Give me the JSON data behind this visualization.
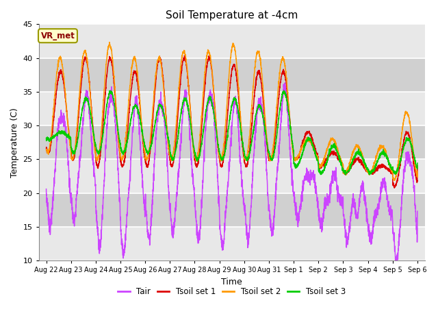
{
  "title": "Soil Temperature at -4cm",
  "xlabel": "Time",
  "ylabel": "Temperature (C)",
  "ylim": [
    10,
    45
  ],
  "background_color": "#ffffff",
  "plot_bg_color": "#d8d8d8",
  "grid_color": "#f0f0f0",
  "legend_label": "VR_met",
  "series_labels": [
    "Tair",
    "Tsoil set 1",
    "Tsoil set 2",
    "Tsoil set 3"
  ],
  "series_colors": [
    "#cc44ff",
    "#dd0000",
    "#ff9900",
    "#00cc00"
  ],
  "tick_labels": [
    "Aug 22",
    "Aug 23",
    "Aug 24",
    "Aug 25",
    "Aug 26",
    "Aug 27",
    "Aug 28",
    "Aug 29",
    "Aug 30",
    "Aug 31",
    "Sep 1",
    "Sep 2",
    "Sep 3",
    "Sep 4",
    "Sep 5",
    "Sep 6"
  ],
  "yticks": [
    10,
    15,
    20,
    25,
    30,
    35,
    40,
    45
  ],
  "n_days": 15
}
